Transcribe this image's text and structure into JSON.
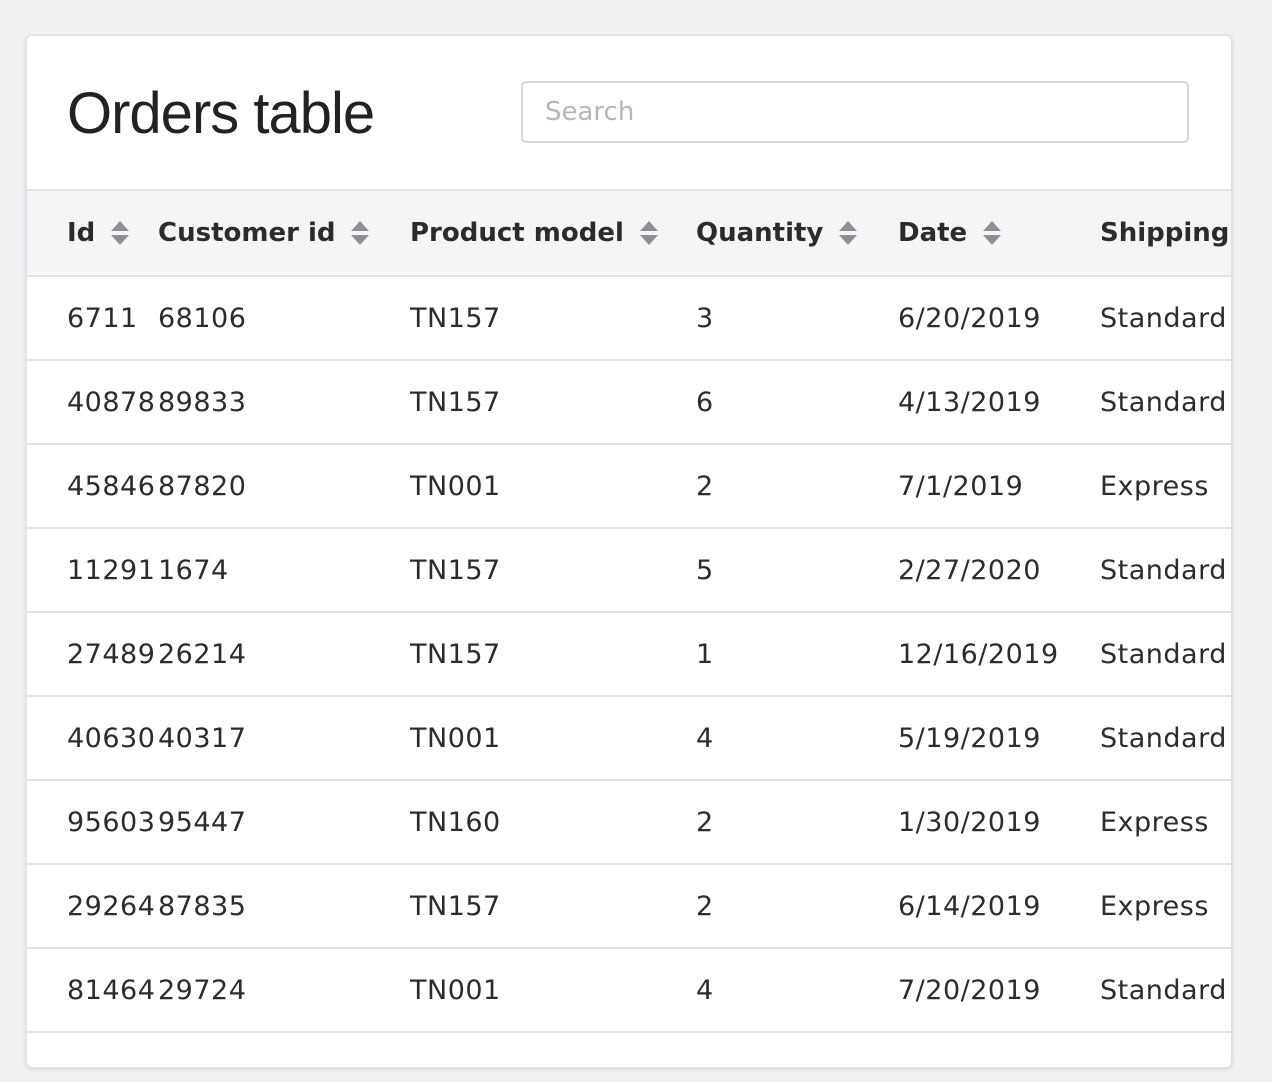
{
  "header": {
    "title": "Orders table",
    "search_placeholder": "Search"
  },
  "table": {
    "columns": [
      "Id",
      "Customer id",
      "Product model",
      "Quantity",
      "Date",
      "Shipping"
    ],
    "rows": [
      [
        "6711",
        "68106",
        "TN157",
        "3",
        "6/20/2019",
        "Standard"
      ],
      [
        "40878",
        "89833",
        "TN157",
        "6",
        "4/13/2019",
        "Standard"
      ],
      [
        "45846",
        "87820",
        "TN001",
        "2",
        "7/1/2019",
        "Express"
      ],
      [
        "11291",
        "1674",
        "TN157",
        "5",
        "2/27/2020",
        "Standard"
      ],
      [
        "27489",
        "26214",
        "TN157",
        "1",
        "12/16/2019",
        "Standard"
      ],
      [
        "40630",
        "40317",
        "TN001",
        "4",
        "5/19/2019",
        "Standard"
      ],
      [
        "95603",
        "95447",
        "TN160",
        "2",
        "1/30/2019",
        "Express"
      ],
      [
        "29264",
        "87835",
        "TN157",
        "2",
        "6/14/2019",
        "Express"
      ],
      [
        "81464",
        "29724",
        "TN001",
        "4",
        "7/20/2019",
        "Standard"
      ]
    ]
  },
  "icons": {
    "sort": "sort-icon"
  }
}
